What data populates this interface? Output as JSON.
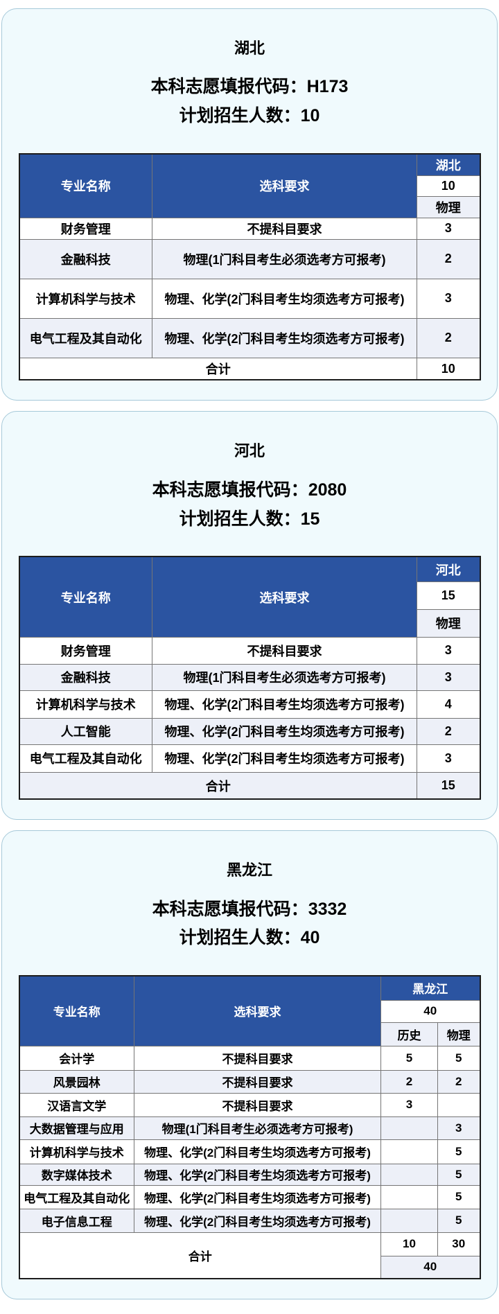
{
  "colors": {
    "header_blue": "#2b54a1",
    "row_alternate": "#edf0f8",
    "card_background": "#f0fafd",
    "card_border": "#a6c9d9",
    "header_text": "#ffffff"
  },
  "cards": [
    {
      "province": "湖北",
      "code_label": "本科志愿填报代码：",
      "code_value": "H173",
      "plan_label": "计划招生人数：",
      "plan_value": "10",
      "table": {
        "col1_header": "专业名称",
        "col2_header": "选科要求",
        "province_header": "湖北",
        "total": "10",
        "subject_columns": [
          "物理"
        ],
        "rows": [
          {
            "major": "财务管理",
            "requirement": "不提科目要求",
            "counts": [
              "3"
            ]
          },
          {
            "major": "金融科技",
            "requirement": "物理(1门科目考生必须选考方可报考)",
            "counts": [
              "2"
            ]
          },
          {
            "major": "计算机科学与技术",
            "requirement": "物理、化学(2门科目考生均须选考方可报考)",
            "counts": [
              "3"
            ]
          },
          {
            "major": "电气工程及其自动化",
            "requirement": "物理、化学(2门科目考生均须选考方可报考)",
            "counts": [
              "2"
            ]
          }
        ],
        "footer": {
          "label": "合计",
          "counts": [
            "10"
          ],
          "grand_total": ""
        }
      }
    },
    {
      "province": "河北",
      "code_label": "本科志愿填报代码：",
      "code_value": "2080",
      "plan_label": "计划招生人数：",
      "plan_value": "15",
      "table": {
        "col1_header": "专业名称",
        "col2_header": "选科要求",
        "province_header": "河北",
        "total": "15",
        "subject_columns": [
          "物理"
        ],
        "rows": [
          {
            "major": "财务管理",
            "requirement": "不提科目要求",
            "counts": [
              "3"
            ]
          },
          {
            "major": "金融科技",
            "requirement": "物理(1门科目考生必须选考方可报考)",
            "counts": [
              "3"
            ]
          },
          {
            "major": "计算机科学与技术",
            "requirement": "物理、化学(2门科目考生均须选考方可报考)",
            "counts": [
              "4"
            ]
          },
          {
            "major": "人工智能",
            "requirement": "物理、化学(2门科目考生均须选考方可报考)",
            "counts": [
              "2"
            ]
          },
          {
            "major": "电气工程及其自动化",
            "requirement": "物理、化学(2门科目考生均须选考方可报考)",
            "counts": [
              "3"
            ]
          }
        ],
        "footer": {
          "label": "合计",
          "counts": [
            "15"
          ],
          "grand_total": ""
        }
      }
    },
    {
      "province": "黑龙江",
      "code_label": "本科志愿填报代码：",
      "code_value": "3332",
      "plan_label": "计划招生人数：",
      "plan_value": "40",
      "table": {
        "col1_header": "专业名称",
        "col2_header": "选科要求",
        "province_header": "黑龙江",
        "total": "40",
        "subject_columns": [
          "历史",
          "物理"
        ],
        "rows": [
          {
            "major": "会计学",
            "requirement": "不提科目要求",
            "counts": [
              "5",
              "5"
            ]
          },
          {
            "major": "风景园林",
            "requirement": "不提科目要求",
            "counts": [
              "2",
              "2"
            ]
          },
          {
            "major": "汉语言文学",
            "requirement": "不提科目要求",
            "counts": [
              "3",
              ""
            ]
          },
          {
            "major": "大数据管理与应用",
            "requirement": "物理(1门科目考生必须选考方可报考)",
            "counts": [
              "",
              "3"
            ]
          },
          {
            "major": "计算机科学与技术",
            "requirement": "物理、化学(2门科目考生均须选考方可报考)",
            "counts": [
              "",
              "5"
            ]
          },
          {
            "major": "数字媒体技术",
            "requirement": "物理、化学(2门科目考生均须选考方可报考)",
            "counts": [
              "",
              "5"
            ]
          },
          {
            "major": "电气工程及其自动化",
            "requirement": "物理、化学(2门科目考生均须选考方可报考)",
            "counts": [
              "",
              "5"
            ]
          },
          {
            "major": "电子信息工程",
            "requirement": "物理、化学(2门科目考生均须选考方可报考)",
            "counts": [
              "",
              "5"
            ]
          }
        ],
        "footer": {
          "label": "合计",
          "counts": [
            "10",
            "30"
          ],
          "grand_total": "40"
        }
      }
    }
  ]
}
